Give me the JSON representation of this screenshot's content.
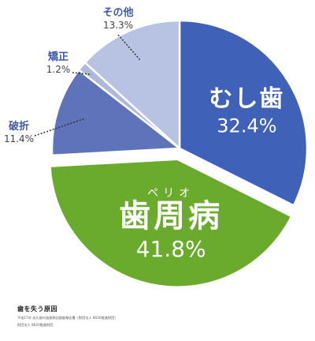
{
  "chart_data": {
    "type": "pie",
    "title": "",
    "slices": [
      {
        "label": "むし歯",
        "value": 32.4,
        "value_text": "32.4%",
        "color": "#3f62b8"
      },
      {
        "label": "歯周病",
        "ruby": "ペリオ",
        "value": 41.8,
        "value_text": "41.8%",
        "color": "#6aaa2c",
        "exploded": true
      },
      {
        "label": "破折",
        "value": 11.4,
        "value_text": "11.4%",
        "color": "#5e73b9"
      },
      {
        "label": "矯正",
        "value": 1.2,
        "value_text": "1.2%",
        "color": "#aeb9dc"
      },
      {
        "label": "その他",
        "value": 13.3,
        "value_text": "13.3%",
        "color": "#b8c3e3"
      }
    ],
    "start_angle_deg": 0,
    "direction": "clockwise"
  },
  "footer": {
    "title": "歯を失う原因",
    "source_line1": "平成17年 永久歯の抜歯原因調査報告書（財団法人 8020推進財団）",
    "source_line2": "財団法人 8020推進財団"
  },
  "colors": {
    "label_blue": "#3f5aa6",
    "label_gray": "#444444",
    "white_text": "#ffffff"
  }
}
